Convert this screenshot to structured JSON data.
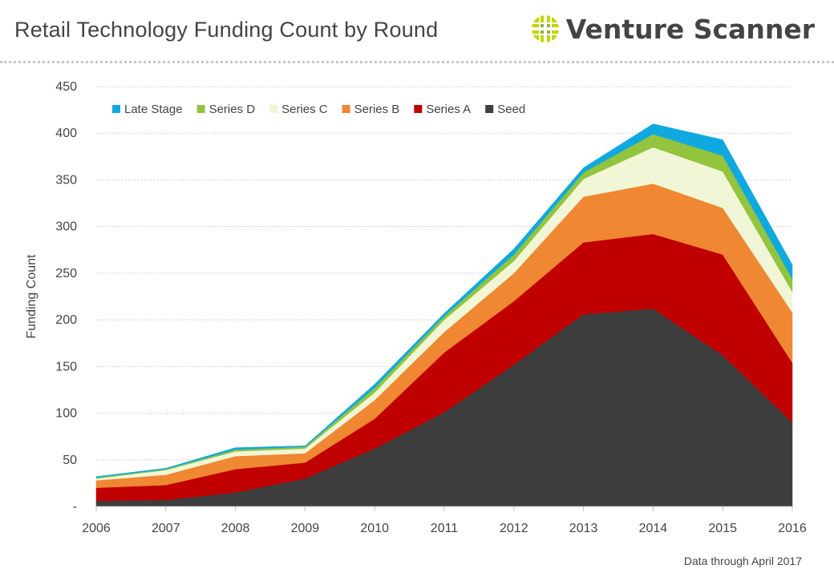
{
  "header": {
    "title": "Retail Technology Funding Count by Round",
    "brand_name": "Venture Scanner",
    "logo_icon": "venture-scanner-logo-icon"
  },
  "footnote": "Data through April 2017",
  "colors": {
    "Seed": "#3d3d3d",
    "Series A": "#c00000",
    "Series B": "#f08732",
    "Series C": "#f1f7d6",
    "Series D": "#92c43e",
    "Late Stage": "#10a9df",
    "logo_yellow": "#c5d600",
    "logo_green": "#8db53c"
  },
  "chart_data": {
    "type": "area",
    "stacked": true,
    "title": "Retail Technology Funding Count by Round",
    "ylabel": "Funding Count",
    "xlabel": "",
    "x": [
      2006,
      2007,
      2008,
      2009,
      2010,
      2011,
      2012,
      2013,
      2014,
      2015,
      2016
    ],
    "ylim": [
      0,
      450
    ],
    "yticks": [
      0,
      50,
      100,
      150,
      200,
      250,
      300,
      350,
      400,
      450
    ],
    "ytick_labels": [
      "-",
      "50",
      "100",
      "150",
      "200",
      "250",
      "300",
      "350",
      "400",
      "450"
    ],
    "grid": true,
    "legend_position": "top-left",
    "legend_order": [
      "Late Stage",
      "Series D",
      "Series C",
      "Series B",
      "Series A",
      "Seed"
    ],
    "series": [
      {
        "name": "Seed",
        "values": [
          6,
          7,
          15,
          30,
          62,
          101,
          152,
          206,
          212,
          162,
          90
        ]
      },
      {
        "name": "Series A",
        "values": [
          14,
          16,
          25,
          17,
          32,
          64,
          68,
          77,
          80,
          108,
          64
        ]
      },
      {
        "name": "Series B",
        "values": [
          8,
          11,
          14,
          10,
          20,
          22,
          30,
          49,
          54,
          50,
          54
        ]
      },
      {
        "name": "Series C",
        "values": [
          2,
          5,
          5,
          5,
          8,
          13,
          13,
          19,
          39,
          39,
          22
        ]
      },
      {
        "name": "Series D",
        "values": [
          1,
          1,
          2,
          2,
          5,
          4,
          7,
          7,
          14,
          17,
          14
        ]
      },
      {
        "name": "Late Stage",
        "values": [
          1,
          1,
          2,
          1,
          4,
          3,
          6,
          5,
          11,
          17,
          15
        ]
      }
    ]
  }
}
